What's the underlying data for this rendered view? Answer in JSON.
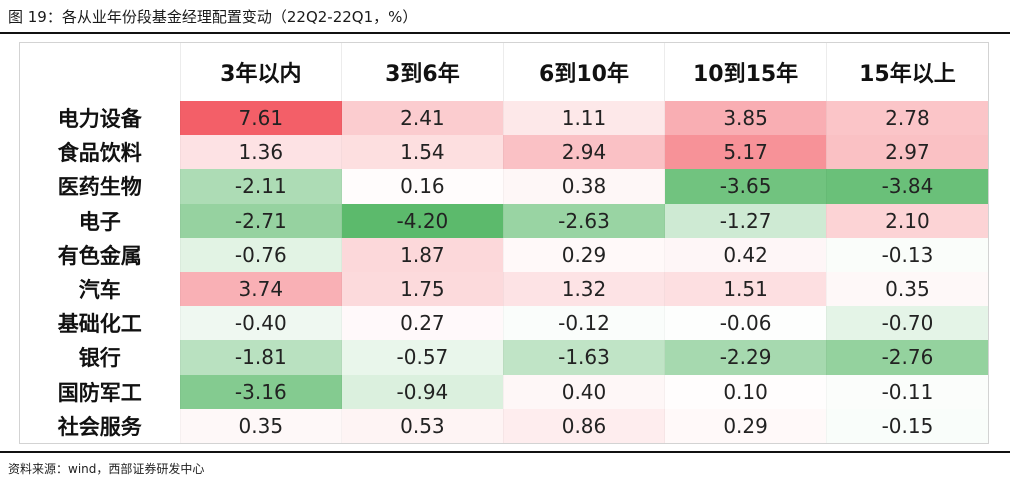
{
  "title": "图 19：各从业年份段基金经理配置变动（22Q2-22Q1，%）",
  "source": "资料来源：wind，西部证券研发中心",
  "colors": {
    "positive_max": "#f35f68",
    "negative_max": "#5cba6c",
    "neutral": "#ffffff"
  },
  "chart_data": {
    "type": "table",
    "title": "图 19：各从业年份段基金经理配置变动（22Q2-22Q1，%）",
    "columns": [
      "3年以内",
      "3到6年",
      "6到10年",
      "10到15年",
      "15年以上"
    ],
    "rows": [
      {
        "name": "电力设备",
        "values": [
          "7.61",
          "2.41",
          "1.11",
          "3.85",
          "2.78"
        ]
      },
      {
        "name": "食品饮料",
        "values": [
          "1.36",
          "1.54",
          "2.94",
          "5.17",
          "2.97"
        ]
      },
      {
        "name": "医药生物",
        "values": [
          "-2.11",
          "0.16",
          "0.38",
          "-3.65",
          "-3.84"
        ]
      },
      {
        "name": "电子",
        "values": [
          "-2.71",
          "-4.20",
          "-2.63",
          "-1.27",
          "2.10"
        ]
      },
      {
        "name": "有色金属",
        "values": [
          "-0.76",
          "1.87",
          "0.29",
          "0.42",
          "-0.13"
        ]
      },
      {
        "name": "汽车",
        "values": [
          "3.74",
          "1.75",
          "1.32",
          "1.51",
          "0.35"
        ]
      },
      {
        "name": "基础化工",
        "values": [
          "-0.40",
          "0.27",
          "-0.12",
          "-0.06",
          "-0.70"
        ]
      },
      {
        "name": "银行",
        "values": [
          "-1.81",
          "-0.57",
          "-1.63",
          "-2.29",
          "-2.76"
        ]
      },
      {
        "name": "国防军工",
        "values": [
          "-3.16",
          "-0.94",
          "0.40",
          "0.10",
          "-0.11"
        ]
      },
      {
        "name": "社会服务",
        "values": [
          "0.35",
          "0.53",
          "0.86",
          "0.29",
          "-0.15"
        ]
      }
    ]
  }
}
